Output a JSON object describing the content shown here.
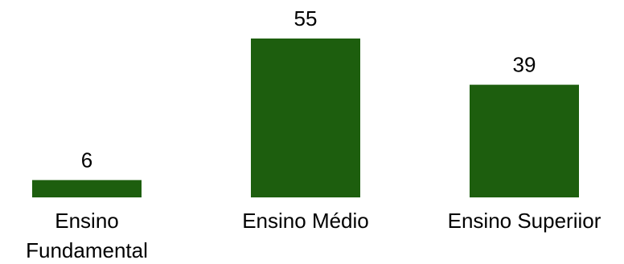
{
  "chart_data": {
    "type": "bar",
    "categories": [
      [
        "Ensino",
        "Fundamental"
      ],
      [
        "Ensino Médio"
      ],
      [
        "Ensino Superiior"
      ]
    ],
    "values": [
      6,
      55,
      39
    ],
    "title": "",
    "xlabel": "",
    "ylabel": "",
    "ylim": [
      0,
      55
    ],
    "grid": false,
    "data_labels": true,
    "bar_color": "#1d5e0e"
  }
}
